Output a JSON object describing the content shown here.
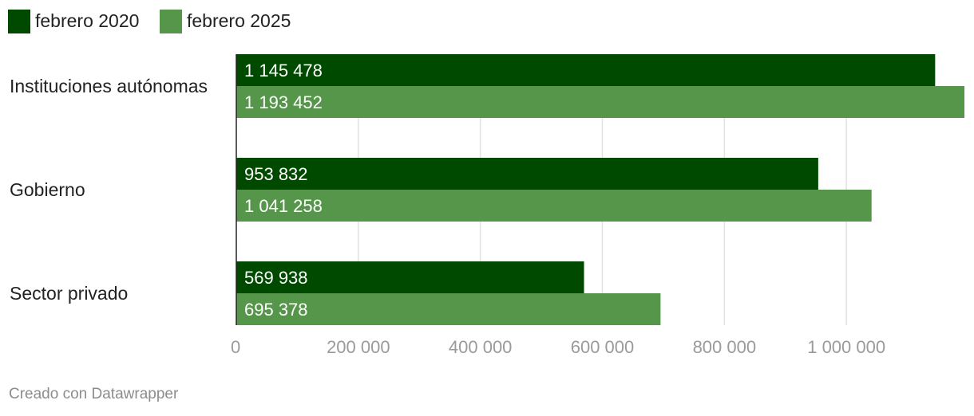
{
  "chart_data": {
    "type": "bar",
    "orientation": "horizontal",
    "categories": [
      "Instituciones autónomas",
      "Gobierno",
      "Sector privado"
    ],
    "series": [
      {
        "name": "febrero 2020",
        "color": "#004a00",
        "values": [
          1145478,
          953832,
          569938
        ],
        "value_labels": [
          "1 145 478",
          "953 832",
          "569 938"
        ]
      },
      {
        "name": "febrero 2025",
        "color": "#56964a",
        "values": [
          1193452,
          1041258,
          695378
        ],
        "value_labels": [
          "1 193 452",
          "1 041 258",
          "695 378"
        ]
      }
    ],
    "xlim": [
      0,
      1193452
    ],
    "x_ticks": [
      0,
      200000,
      400000,
      600000,
      800000,
      1000000
    ],
    "x_tick_labels": [
      "0",
      "200 000",
      "400 000",
      "600 000",
      "800 000",
      "1 000 000"
    ],
    "grid": true,
    "legend_position": "top-left",
    "title": "",
    "xlabel": "",
    "ylabel": ""
  },
  "footer": {
    "credit": "Creado con Datawrapper"
  }
}
